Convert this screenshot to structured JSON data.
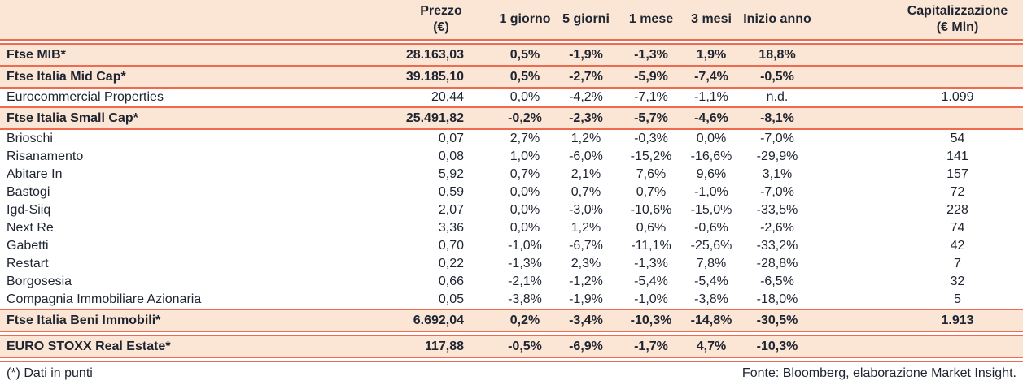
{
  "colors": {
    "band_background": "#fbe5d5",
    "rule": "#ef6a4e",
    "text": "#1e2430"
  },
  "chart_data": {
    "type": "table",
    "columns": [
      {
        "label": "",
        "sub": ""
      },
      {
        "label": "Prezzo",
        "sub": "(€)"
      },
      {
        "label": "1 giorno",
        "sub": ""
      },
      {
        "label": "5 giorni",
        "sub": ""
      },
      {
        "label": "1 mese",
        "sub": ""
      },
      {
        "label": "3 mesi",
        "sub": ""
      },
      {
        "label": "Inizio anno",
        "sub": ""
      },
      {
        "label": "Capitalizzazione",
        "sub": "(€ Mln)"
      }
    ],
    "rows": [
      {
        "name": "Ftse MIB*",
        "style": "index",
        "prezzo": "28.163,03",
        "g1": "0,5%",
        "g5": "-1,9%",
        "m1": "-1,3%",
        "m3": "1,9%",
        "ytd": "18,8%",
        "cap": ""
      },
      {
        "name": "Ftse Italia Mid Cap*",
        "style": "index",
        "prezzo": "39.185,10",
        "g1": "0,5%",
        "g5": "-2,7%",
        "m1": "-5,9%",
        "m3": "-7,4%",
        "ytd": "-0,5%",
        "cap": ""
      },
      {
        "name": "Eurocommercial Properties",
        "style": "stock",
        "prezzo": "20,44",
        "g1": "0,0%",
        "g5": "-4,2%",
        "m1": "-7,1%",
        "m3": "-1,1%",
        "ytd": "n.d.",
        "cap": "1.099"
      },
      {
        "name": "Ftse Italia Small Cap*",
        "style": "index",
        "prezzo": "25.491,82",
        "g1": "-0,2%",
        "g5": "-2,3%",
        "m1": "-5,7%",
        "m3": "-4,6%",
        "ytd": "-8,1%",
        "cap": ""
      },
      {
        "name": "Brioschi",
        "style": "stock",
        "prezzo": "0,07",
        "g1": "2,7%",
        "g5": "1,2%",
        "m1": "-0,3%",
        "m3": "0,0%",
        "ytd": "-7,0%",
        "cap": "54"
      },
      {
        "name": "Risanamento",
        "style": "stock",
        "prezzo": "0,08",
        "g1": "1,0%",
        "g5": "-6,0%",
        "m1": "-15,2%",
        "m3": "-16,6%",
        "ytd": "-29,9%",
        "cap": "141"
      },
      {
        "name": "Abitare In",
        "style": "stock",
        "prezzo": "5,92",
        "g1": "0,7%",
        "g5": "2,1%",
        "m1": "7,6%",
        "m3": "9,6%",
        "ytd": "3,1%",
        "cap": "157"
      },
      {
        "name": "Bastogi",
        "style": "stock",
        "prezzo": "0,59",
        "g1": "0,0%",
        "g5": "0,7%",
        "m1": "0,7%",
        "m3": "-1,0%",
        "ytd": "-7,0%",
        "cap": "72"
      },
      {
        "name": "Igd-Siiq",
        "style": "stock",
        "prezzo": "2,07",
        "g1": "0,0%",
        "g5": "-3,0%",
        "m1": "-10,6%",
        "m3": "-15,0%",
        "ytd": "-33,5%",
        "cap": "228"
      },
      {
        "name": "Next Re",
        "style": "stock",
        "prezzo": "3,36",
        "g1": "0,0%",
        "g5": "1,2%",
        "m1": "0,6%",
        "m3": "-0,6%",
        "ytd": "-2,6%",
        "cap": "74"
      },
      {
        "name": "Gabetti",
        "style": "stock",
        "prezzo": "0,70",
        "g1": "-1,0%",
        "g5": "-6,7%",
        "m1": "-11,1%",
        "m3": "-25,6%",
        "ytd": "-33,2%",
        "cap": "42"
      },
      {
        "name": "Restart",
        "style": "stock",
        "prezzo": "0,22",
        "g1": "-1,3%",
        "g5": "2,3%",
        "m1": "-1,3%",
        "m3": "7,8%",
        "ytd": "-28,8%",
        "cap": "7"
      },
      {
        "name": "Borgosesia",
        "style": "stock",
        "prezzo": "0,66",
        "g1": "-2,1%",
        "g5": "-1,2%",
        "m1": "-5,4%",
        "m3": "-5,4%",
        "ytd": "-6,5%",
        "cap": "32"
      },
      {
        "name": "Compagnia Immobiliare Azionaria",
        "style": "stock",
        "prezzo": "0,05",
        "g1": "-3,8%",
        "g5": "-1,9%",
        "m1": "-1,0%",
        "m3": "-3,8%",
        "ytd": "-18,0%",
        "cap": "5"
      },
      {
        "name": "Ftse Italia Beni Immobili*",
        "style": "index",
        "prezzo": "6.692,04",
        "g1": "0,2%",
        "g5": "-3,4%",
        "m1": "-10,3%",
        "m3": "-14,8%",
        "ytd": "-30,5%",
        "cap": "1.913"
      },
      {
        "name": "EURO STOXX Real Estate*",
        "style": "index",
        "prezzo": "117,88",
        "g1": "-0,5%",
        "g5": "-6,9%",
        "m1": "-1,7%",
        "m3": "4,7%",
        "ytd": "-10,3%",
        "cap": ""
      }
    ]
  },
  "footer": {
    "note": "(*) Dati in punti",
    "source": "Fonte: Bloomberg, elaborazione Market Insight."
  }
}
